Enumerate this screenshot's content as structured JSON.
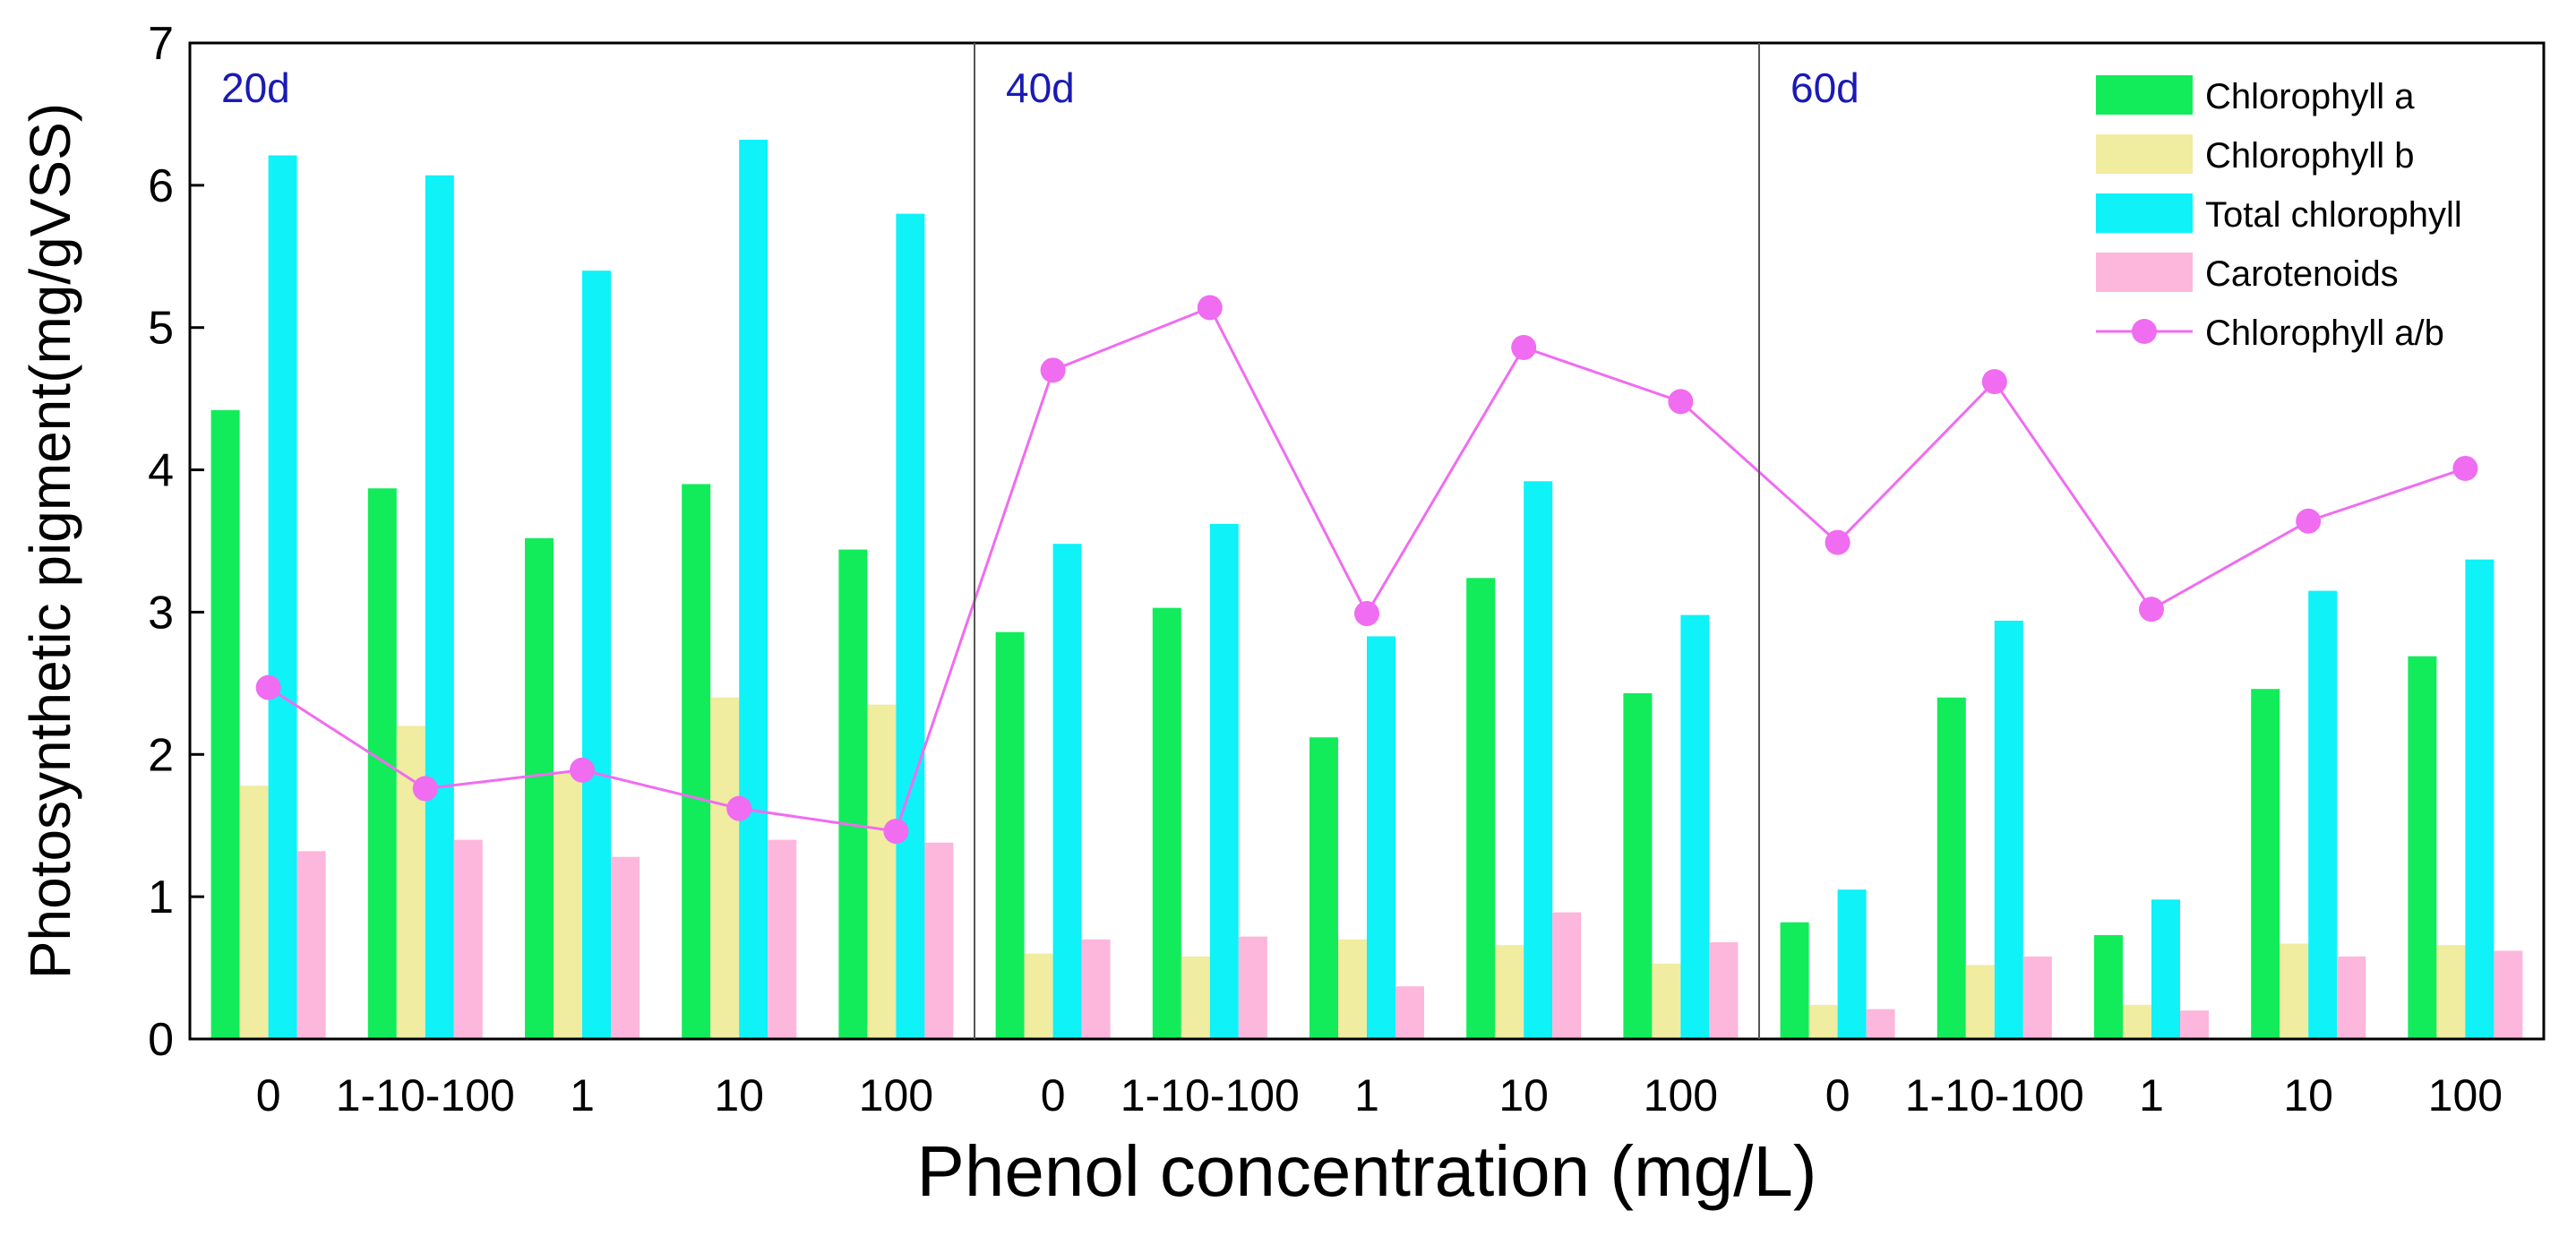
{
  "chart_data": {
    "type": "bar",
    "title": "",
    "xlabel": "Phenol concentration (mg/L)",
    "ylabel": "Photosynthetic pigment(mg/gVSS)",
    "ylim": [
      0,
      7
    ],
    "yticks": [
      "0",
      "1",
      "2",
      "3",
      "4",
      "5",
      "6",
      "7"
    ],
    "grid": false,
    "legend_position": "top-right",
    "groups": [
      "20d",
      "40d",
      "60d"
    ],
    "categories": [
      "0",
      "1-10-100",
      "1",
      "10",
      "100",
      "0",
      "1-10-100",
      "1",
      "10",
      "100",
      "0",
      "1-10-100",
      "1",
      "10",
      "100"
    ],
    "series": [
      {
        "name": "Chlorophyll a",
        "kind": "bar",
        "color": "#12ec5a",
        "values": [
          4.42,
          3.87,
          3.52,
          3.9,
          3.44,
          2.86,
          3.03,
          2.12,
          3.24,
          2.43,
          0.82,
          2.4,
          0.73,
          2.46,
          2.69
        ]
      },
      {
        "name": "Chlorophyll b",
        "kind": "bar",
        "color": "#f0eca0",
        "values": [
          1.78,
          2.2,
          1.88,
          2.4,
          2.35,
          0.6,
          0.58,
          0.7,
          0.66,
          0.53,
          0.24,
          0.52,
          0.24,
          0.67,
          0.66
        ]
      },
      {
        "name": "Total chlorophyll",
        "kind": "bar",
        "color": "#0ef2f8",
        "values": [
          6.21,
          6.07,
          5.4,
          6.32,
          5.8,
          3.48,
          3.62,
          2.83,
          3.92,
          2.98,
          1.05,
          2.94,
          0.98,
          3.15,
          3.37
        ]
      },
      {
        "name": "Carotenoids",
        "kind": "bar",
        "color": "#fdb6dc",
        "values": [
          1.32,
          1.4,
          1.28,
          1.4,
          1.38,
          0.7,
          0.72,
          0.37,
          0.89,
          0.68,
          0.21,
          0.58,
          0.2,
          0.58,
          0.62
        ]
      },
      {
        "name": "Chlorophyll a/b",
        "kind": "line",
        "color": "#f06cf0",
        "values": [
          2.47,
          1.76,
          1.89,
          1.62,
          1.46,
          4.7,
          5.14,
          2.99,
          4.86,
          4.48,
          3.49,
          4.62,
          3.02,
          3.64,
          4.01
        ]
      }
    ]
  }
}
